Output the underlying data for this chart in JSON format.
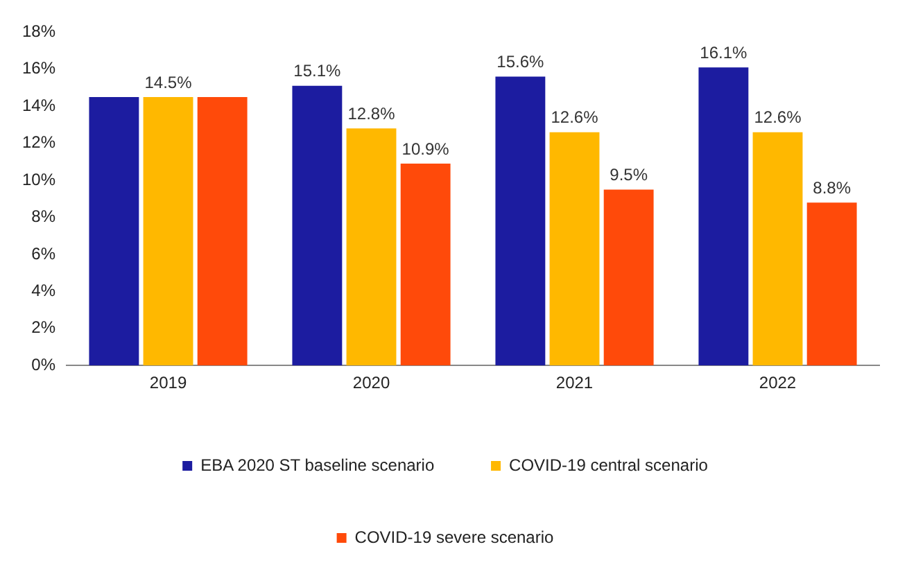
{
  "chart_data": {
    "type": "bar",
    "categories": [
      "2019",
      "2020",
      "2021",
      "2022"
    ],
    "series": [
      {
        "name": "EBA 2020 ST baseline scenario",
        "color": "#1c1ca0",
        "values": [
          14.5,
          15.1,
          15.6,
          16.1
        ],
        "value_labels": [
          null,
          "15.1%",
          "15.6%",
          "16.1%"
        ]
      },
      {
        "name": "COVID-19 central scenario",
        "color": "#ffb800",
        "values": [
          14.5,
          12.8,
          12.6,
          12.6
        ],
        "value_labels": [
          "14.5%",
          "12.8%",
          "12.6%",
          "12.6%"
        ]
      },
      {
        "name": "COVID-19 severe scenario",
        "color": "#ff4a0a",
        "values": [
          14.5,
          10.9,
          9.5,
          8.8
        ],
        "value_labels": [
          null,
          "10.9%",
          "9.5%",
          "8.8%"
        ]
      }
    ],
    "ylim": [
      0,
      18
    ],
    "yticks": [
      {
        "value": 0,
        "label": "0%"
      },
      {
        "value": 2,
        "label": "2%"
      },
      {
        "value": 4,
        "label": "4%"
      },
      {
        "value": 6,
        "label": "6%"
      },
      {
        "value": 8,
        "label": "8%"
      },
      {
        "value": 10,
        "label": "10%"
      },
      {
        "value": 12,
        "label": "12%"
      },
      {
        "value": 14,
        "label": "14%"
      },
      {
        "value": 16,
        "label": "16%"
      },
      {
        "value": 18,
        "label": "18%"
      }
    ],
    "grid": false,
    "legend": "bottom"
  }
}
